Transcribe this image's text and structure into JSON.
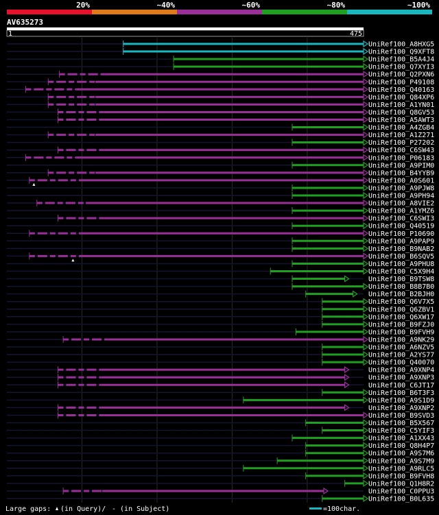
{
  "chart_data": {
    "type": "alignment-overview",
    "query_id": "AV635273",
    "query_start": "1",
    "query_end": "475",
    "query_length": 475,
    "identity_scale": [
      {
        "label": "20%",
        "color": "#e8102a"
      },
      {
        "label": "~40%",
        "color": "#e07a18"
      },
      {
        "label": "~60%",
        "color": "#9b2f9a"
      },
      {
        "label": "~80%",
        "color": "#20a020"
      },
      {
        "label": "~100%",
        "color": "#19b8c0"
      }
    ],
    "footer_gaps_label": "Large gaps:",
    "footer_gap_query": "(in Query)/",
    "footer_gap_subject": "- (in Subject)",
    "footer_scale_label": "=100char.",
    "footer_scale_color": "#19b8c0",
    "footer_scale_chars": 100,
    "hits": [
      {
        "name": "UniRef100_A8HXG5",
        "start": 155,
        "end": 475,
        "color": "#19b8c0",
        "dotted": false
      },
      {
        "name": "UniRef100_Q9XFT8",
        "start": 155,
        "end": 475,
        "color": "#19b8c0",
        "dotted": false
      },
      {
        "name": "UniRef100_B5A4J4",
        "start": 222,
        "end": 475,
        "color": "#20a020",
        "dotted": false
      },
      {
        "name": "UniRef100_Q7XYI3",
        "start": 222,
        "end": 475,
        "color": "#20a020",
        "dotted": false
      },
      {
        "name": "UniRef100_Q2PXN6",
        "start": 70,
        "end": 475,
        "color": "#9b2f9a",
        "dotted": true
      },
      {
        "name": "UniRef100_P49108",
        "start": 55,
        "end": 475,
        "color": "#9b2f9a",
        "dotted": true
      },
      {
        "name": "UniRef100_Q40163",
        "start": 25,
        "end": 475,
        "color": "#9b2f9a",
        "dotted": true
      },
      {
        "name": "UniRef100_Q84XP6",
        "start": 55,
        "end": 475,
        "color": "#9b2f9a",
        "dotted": true
      },
      {
        "name": "UniRef100_A1YN01",
        "start": 55,
        "end": 475,
        "color": "#9b2f9a",
        "dotted": true
      },
      {
        "name": "UniRef100_Q8GV53",
        "start": 68,
        "end": 475,
        "color": "#9b2f9a",
        "dotted": true
      },
      {
        "name": "UniRef100_A5AWT3",
        "start": 68,
        "end": 475,
        "color": "#9b2f9a",
        "dotted": true
      },
      {
        "name": "UniRef100_A4ZGB4",
        "start": 380,
        "end": 475,
        "color": "#20a020",
        "dotted": false
      },
      {
        "name": "UniRef100_A1Z271",
        "start": 55,
        "end": 475,
        "color": "#9b2f9a",
        "dotted": true
      },
      {
        "name": "UniRef100_P27202",
        "start": 380,
        "end": 475,
        "color": "#20a020",
        "dotted": false
      },
      {
        "name": "UniRef100_C6SW43",
        "start": 68,
        "end": 475,
        "color": "#9b2f9a",
        "dotted": true
      },
      {
        "name": "UniRef100_P06183",
        "start": 25,
        "end": 475,
        "color": "#9b2f9a",
        "dotted": true
      },
      {
        "name": "UniRef100_A9PIM0",
        "start": 380,
        "end": 475,
        "color": "#20a020",
        "dotted": false
      },
      {
        "name": "UniRef100_B4YYB9",
        "start": 55,
        "end": 475,
        "color": "#9b2f9a",
        "dotted": true
      },
      {
        "name": "UniRef100_A0S601",
        "start": 30,
        "end": 475,
        "color": "#9b2f9a",
        "dotted": true,
        "gap_mark": 36
      },
      {
        "name": "UniRef100_A9PJW8",
        "start": 380,
        "end": 475,
        "color": "#20a020",
        "dotted": false
      },
      {
        "name": "UniRef100_A9PH94",
        "start": 380,
        "end": 475,
        "color": "#20a020",
        "dotted": false
      },
      {
        "name": "UniRef100_A8VIE2",
        "start": 40,
        "end": 475,
        "color": "#9b2f9a",
        "dotted": true
      },
      {
        "name": "UniRef100_A1YMZ6",
        "start": 380,
        "end": 475,
        "color": "#20a020",
        "dotted": false
      },
      {
        "name": "UniRef100_C6SWI3",
        "start": 68,
        "end": 475,
        "color": "#9b2f9a",
        "dotted": true
      },
      {
        "name": "UniRef100_Q40519",
        "start": 380,
        "end": 475,
        "color": "#20a020",
        "dotted": false
      },
      {
        "name": "UniRef100_P10690",
        "start": 30,
        "end": 475,
        "color": "#9b2f9a",
        "dotted": true
      },
      {
        "name": "UniRef100_A9PAP9",
        "start": 380,
        "end": 475,
        "color": "#20a020",
        "dotted": false
      },
      {
        "name": "UniRef100_B9NAB2",
        "start": 380,
        "end": 475,
        "color": "#20a020",
        "dotted": false
      },
      {
        "name": "UniRef100_B6SQV5",
        "start": 30,
        "end": 475,
        "color": "#9b2f9a",
        "dotted": true,
        "gap_mark": 88
      },
      {
        "name": "UniRef100_A9PHU8",
        "start": 380,
        "end": 475,
        "color": "#20a020",
        "dotted": false
      },
      {
        "name": "UniRef100_C5X9H4",
        "start": 351,
        "end": 475,
        "color": "#20a020",
        "dotted": false
      },
      {
        "name": "UniRef100_B9TSW8",
        "start": 380,
        "end": 450,
        "color": "#20a020",
        "dotted": false
      },
      {
        "name": "UniRef100_B8B7B0",
        "start": 380,
        "end": 475,
        "color": "#20a020",
        "dotted": false
      },
      {
        "name": "UniRef100_B2BJH0",
        "start": 398,
        "end": 461,
        "color": "#20a020",
        "dotted": false
      },
      {
        "name": "UniRef100_Q6V7X5",
        "start": 420,
        "end": 475,
        "color": "#20a020",
        "dotted": false
      },
      {
        "name": "UniRef100_Q6ZBV1",
        "start": 420,
        "end": 475,
        "color": "#20a020",
        "dotted": false
      },
      {
        "name": "UniRef100_Q6XW17",
        "start": 420,
        "end": 475,
        "color": "#20a020",
        "dotted": false
      },
      {
        "name": "UniRef100_B9FZJ0",
        "start": 420,
        "end": 475,
        "color": "#20a020",
        "dotted": false
      },
      {
        "name": "UniRef100_B9FVH9",
        "start": 385,
        "end": 475,
        "color": "#20a020",
        "dotted": false
      },
      {
        "name": "UniRef100_A9NK29",
        "start": 75,
        "end": 475,
        "color": "#9b2f9a",
        "dotted": true
      },
      {
        "name": "UniRef100_A6NZV5",
        "start": 420,
        "end": 475,
        "color": "#20a020",
        "dotted": false
      },
      {
        "name": "UniRef100_A2YS77",
        "start": 420,
        "end": 475,
        "color": "#20a020",
        "dotted": false
      },
      {
        "name": "UniRef100_Q40070",
        "start": 420,
        "end": 475,
        "color": "#20a020",
        "dotted": false
      },
      {
        "name": "UniRef100_A9XNP4",
        "start": 68,
        "end": 450,
        "color": "#9b2f9a",
        "dotted": true
      },
      {
        "name": "UniRef100_A9XNP3",
        "start": 68,
        "end": 450,
        "color": "#9b2f9a",
        "dotted": true
      },
      {
        "name": "UniRef100_C6JT17",
        "start": 68,
        "end": 450,
        "color": "#9b2f9a",
        "dotted": true
      },
      {
        "name": "UniRef100_B6T3F3",
        "start": 420,
        "end": 475,
        "color": "#20a020",
        "dotted": false
      },
      {
        "name": "UniRef100_A9S1D9",
        "start": 315,
        "end": 475,
        "color": "#20a020",
        "dotted": false
      },
      {
        "name": "UniRef100_A9XNP2",
        "start": 68,
        "end": 450,
        "color": "#9b2f9a",
        "dotted": true
      },
      {
        "name": "UniRef100_B9SVD3",
        "start": 68,
        "end": 475,
        "color": "#9b2f9a",
        "dotted": true
      },
      {
        "name": "UniRef100_B5X567",
        "start": 398,
        "end": 475,
        "color": "#20a020",
        "dotted": false
      },
      {
        "name": "UniRef100_C5YIF3",
        "start": 420,
        "end": 475,
        "color": "#20a020",
        "dotted": false
      },
      {
        "name": "UniRef100_A1XX43",
        "start": 380,
        "end": 475,
        "color": "#20a020",
        "dotted": false
      },
      {
        "name": "UniRef100_Q8H4P7",
        "start": 398,
        "end": 475,
        "color": "#20a020",
        "dotted": false
      },
      {
        "name": "UniRef100_A9S7M6",
        "start": 398,
        "end": 475,
        "color": "#20a020",
        "dotted": false
      },
      {
        "name": "UniRef100_A9S7M9",
        "start": 360,
        "end": 475,
        "color": "#20a020",
        "dotted": false
      },
      {
        "name": "UniRef100_A9RLC5",
        "start": 315,
        "end": 475,
        "color": "#20a020",
        "dotted": false
      },
      {
        "name": "UniRef100_B9FVH8",
        "start": 398,
        "end": 475,
        "color": "#20a020",
        "dotted": false
      },
      {
        "name": "UniRef100_Q1H8R2",
        "start": 450,
        "end": 475,
        "color": "#20a020",
        "dotted": false
      },
      {
        "name": "UniRef100_C0PPU3",
        "start": 75,
        "end": 422,
        "color": "#9b2f9a",
        "dotted": true
      },
      {
        "name": "UniRef100_B0L635",
        "start": 420,
        "end": 475,
        "color": "#20a020",
        "dotted": false
      }
    ]
  }
}
